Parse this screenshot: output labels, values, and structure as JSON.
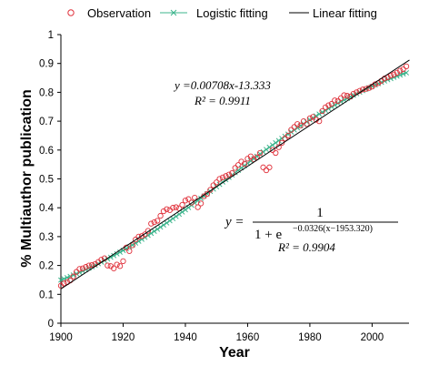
{
  "chart_data": {
    "type": "scatter",
    "xlabel": "Year",
    "ylabel": "% Multiauthor publication",
    "xlim": [
      1900,
      2012
    ],
    "ylim": [
      0,
      1
    ],
    "xticks": [
      "1900",
      "1920",
      "1940",
      "1960",
      "1980",
      "2000"
    ],
    "yticks": [
      "0",
      "0.1",
      "0.2",
      "0.3",
      "0.4",
      "0.5",
      "0.6",
      "0.7",
      "0.8",
      "0.9",
      "1"
    ],
    "legend": {
      "placement": "top",
      "entries": [
        "Observation",
        "Logistic fitting",
        "Linear fitting"
      ]
    },
    "series": [
      {
        "name": "Observation",
        "marker": "open-circle",
        "color": "#e0303a",
        "x": [
          1900,
          1901,
          1902,
          1903,
          1904,
          1905,
          1906,
          1907,
          1908,
          1909,
          1910,
          1911,
          1912,
          1913,
          1914,
          1915,
          1916,
          1917,
          1918,
          1919,
          1920,
          1921,
          1922,
          1923,
          1924,
          1925,
          1926,
          1927,
          1928,
          1929,
          1930,
          1931,
          1932,
          1933,
          1934,
          1935,
          1936,
          1937,
          1938,
          1939,
          1940,
          1941,
          1942,
          1943,
          1944,
          1945,
          1946,
          1947,
          1948,
          1949,
          1950,
          1951,
          1952,
          1953,
          1954,
          1955,
          1956,
          1957,
          1958,
          1959,
          1960,
          1961,
          1962,
          1963,
          1964,
          1965,
          1966,
          1967,
          1968,
          1969,
          1970,
          1971,
          1972,
          1973,
          1974,
          1975,
          1976,
          1977,
          1978,
          1979,
          1980,
          1981,
          1982,
          1983,
          1984,
          1985,
          1986,
          1987,
          1988,
          1989,
          1990,
          1991,
          1992,
          1993,
          1994,
          1995,
          1996,
          1997,
          1998,
          1999,
          2000,
          2001,
          2002,
          2003,
          2004,
          2005,
          2006,
          2007,
          2008,
          2009,
          2010,
          2011
        ],
        "y": [
          0.13,
          0.138,
          0.142,
          0.148,
          0.162,
          0.178,
          0.188,
          0.19,
          0.195,
          0.2,
          0.202,
          0.205,
          0.212,
          0.22,
          0.225,
          0.2,
          0.198,
          0.19,
          0.203,
          0.198,
          0.215,
          0.262,
          0.25,
          0.27,
          0.29,
          0.3,
          0.302,
          0.308,
          0.32,
          0.345,
          0.35,
          0.355,
          0.372,
          0.388,
          0.395,
          0.392,
          0.4,
          0.402,
          0.398,
          0.41,
          0.425,
          0.43,
          0.418,
          0.435,
          0.402,
          0.415,
          0.44,
          0.448,
          0.462,
          0.478,
          0.488,
          0.5,
          0.505,
          0.51,
          0.515,
          0.52,
          0.538,
          0.548,
          0.56,
          0.552,
          0.57,
          0.578,
          0.568,
          0.575,
          0.59,
          0.54,
          0.53,
          0.54,
          0.6,
          0.59,
          0.61,
          0.625,
          0.64,
          0.65,
          0.67,
          0.68,
          0.69,
          0.685,
          0.7,
          0.69,
          0.71,
          0.715,
          0.705,
          0.7,
          0.735,
          0.748,
          0.755,
          0.76,
          0.772,
          0.77,
          0.78,
          0.79,
          0.788,
          0.785,
          0.795,
          0.8,
          0.805,
          0.81,
          0.812,
          0.815,
          0.82,
          0.828,
          0.832,
          0.84,
          0.848,
          0.852,
          0.858,
          0.862,
          0.868,
          0.875,
          0.88,
          0.89
        ]
      },
      {
        "name": "Logistic fitting",
        "marker": "x",
        "color": "#3cb48c",
        "formula": "1/(1+exp(-0.0326*(x-1953.320)))",
        "x_range": [
          1900,
          2011
        ]
      },
      {
        "name": "Linear fitting",
        "marker": "line",
        "color": "#000000",
        "slope": 0.00708,
        "intercept": -13.333,
        "x_range": [
          1900,
          2012
        ]
      }
    ],
    "annotations": {
      "linear_equation": "y =0.00708x-13.333",
      "linear_r2": "R² = 0.9911",
      "logistic_y": "y =",
      "logistic_numerator": "1",
      "logistic_denominator_base": "1 + e",
      "logistic_exponent": "−0.0326(x−1953.320)",
      "logistic_r2": "R² = 0.9904"
    }
  }
}
